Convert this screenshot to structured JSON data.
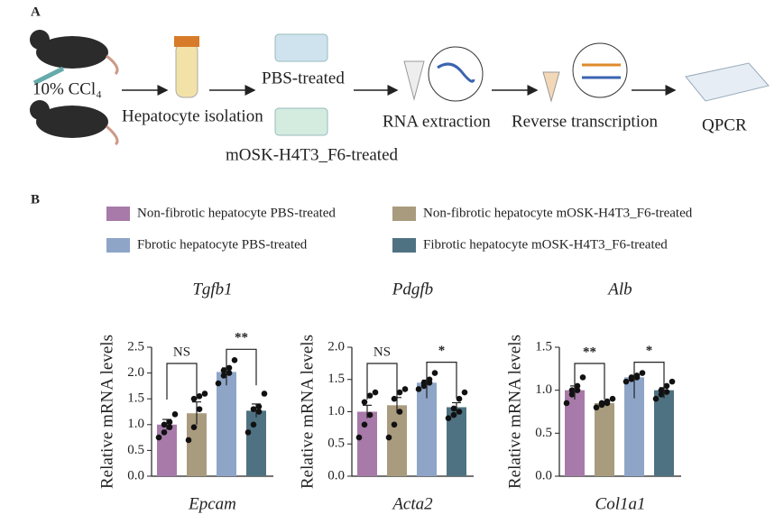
{
  "panel_a": {
    "label": "A",
    "steps": [
      "10% CCl₄",
      "Hepatocyte isolation",
      "PBS-treated",
      "mOSK-H4T3_F6-treated",
      "RNA extraction",
      "Reverse transcription",
      "QPCR"
    ]
  },
  "panel_b_label": "B",
  "legend": [
    {
      "name": "Non-fibrotic hepatocyte PBS-treated",
      "color": "#a77aa9"
    },
    {
      "name": "Non-fibrotic hepatocyte mOSK-H4T3_F6-treated",
      "color": "#a99b7d"
    },
    {
      "name": "Fbrotic hepatocyte PBS-treated",
      "color": "#8ea5c8"
    },
    {
      "name": "Fibrotic hepatocyte mOSK-H4T3_F6-treated",
      "color": "#4f7282"
    }
  ],
  "chart_data": [
    {
      "type": "bar",
      "title": "Tgfb1",
      "xlabel": "Epcam",
      "ylabel": "Relative mRNA levels",
      "values": [
        1.0,
        1.22,
        2.02,
        1.27
      ],
      "errors": [
        0.1,
        0.22,
        0.08,
        0.13
      ],
      "points": [
        [
          0.75,
          0.85,
          0.95,
          1.0,
          1.05,
          1.2
        ],
        [
          0.7,
          0.95,
          1.3,
          1.5,
          1.55,
          1.6
        ],
        [
          1.8,
          1.95,
          2.0,
          2.05,
          2.1,
          2.25
        ],
        [
          0.85,
          1.0,
          1.25,
          1.3,
          1.35,
          1.6
        ]
      ],
      "ylim": [
        0,
        2.5
      ],
      "yticks": [
        {
          "value": 0,
          "label": "0.0"
        },
        0.5,
        {
          "value": 1,
          "label": "1.0"
        },
        1.5,
        {
          "value": 2,
          "label": "2.0"
        },
        2.5
      ],
      "annotations": [
        {
          "text": "NS",
          "from": 0,
          "to": 1
        },
        {
          "text": "**",
          "from": 2,
          "to": 3
        }
      ]
    },
    {
      "type": "bar",
      "title": "Pdgfb",
      "xlabel": "Acta2",
      "ylabel": "Relative mRNA levels",
      "values": [
        1.0,
        1.1,
        1.45,
        1.07
      ],
      "errors": [
        0.1,
        0.12,
        0.04,
        0.07
      ],
      "points": [
        [
          0.6,
          0.8,
          0.95,
          1.15,
          1.25,
          1.3
        ],
        [
          0.6,
          0.8,
          1.0,
          1.2,
          1.3,
          1.35
        ],
        [
          1.35,
          1.4,
          1.45,
          1.45,
          1.5,
          1.6
        ],
        [
          0.9,
          0.95,
          1.0,
          1.05,
          1.2,
          1.3
        ]
      ],
      "ylim": [
        0,
        2
      ],
      "yticks": [
        {
          "value": 0,
          "label": "0.0"
        },
        0.5,
        {
          "value": 1,
          "label": "1.0"
        },
        1.5,
        {
          "value": 2,
          "label": "2.0"
        }
      ],
      "annotations": [
        {
          "text": "NS",
          "from": 0,
          "to": 1
        },
        {
          "text": "*",
          "from": 2,
          "to": 3
        }
      ]
    },
    {
      "type": "bar",
      "title": "Alb",
      "xlabel": "Col1a1",
      "ylabel": "Relative mRNA levels",
      "values": [
        1.0,
        0.85,
        1.15,
        1.0
      ],
      "errors": [
        0.05,
        0.02,
        0.02,
        0.03
      ],
      "points": [
        [
          0.85,
          0.95,
          1.0,
          1.0,
          1.05,
          1.15
        ],
        [
          0.8,
          0.83,
          0.85,
          0.85,
          0.87,
          0.9
        ],
        [
          1.1,
          1.13,
          1.15,
          1.15,
          1.17,
          1.2
        ],
        [
          0.9,
          0.95,
          0.98,
          1.0,
          1.05,
          1.1
        ]
      ],
      "ylim": [
        0,
        1.5
      ],
      "yticks": [
        {
          "value": 0,
          "label": "0.0"
        },
        0.5,
        {
          "value": 1,
          "label": "1.0"
        },
        1.5
      ],
      "annotations": [
        {
          "text": "**",
          "from": 0,
          "to": 1
        },
        {
          "text": "*",
          "from": 2,
          "to": 3
        }
      ]
    }
  ]
}
